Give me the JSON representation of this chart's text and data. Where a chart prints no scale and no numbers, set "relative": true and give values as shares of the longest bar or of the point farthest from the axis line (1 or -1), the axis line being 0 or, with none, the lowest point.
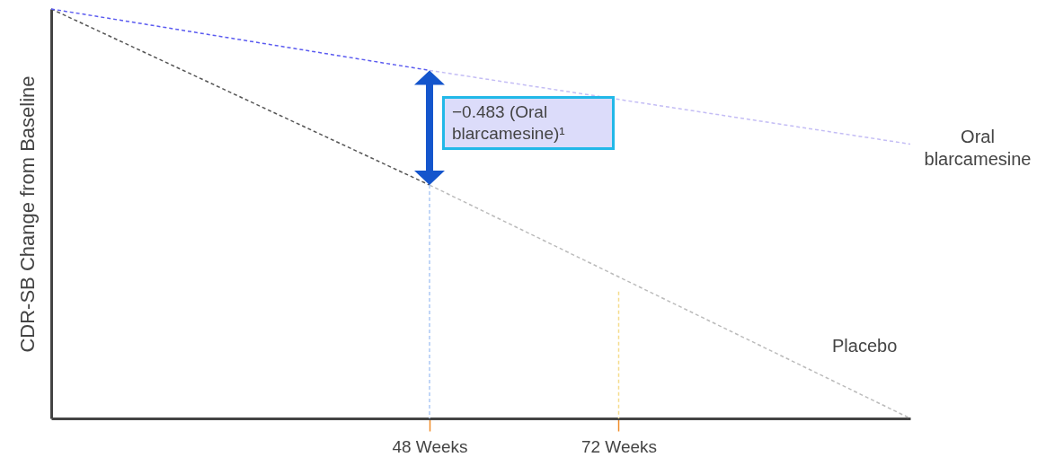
{
  "chart_data": {
    "type": "line",
    "relative": true,
    "ylabel": "CDR-SB Change from Baseline",
    "xlim": [
      0,
      109
    ],
    "xticks": [
      {
        "value": 48,
        "label": "48 Weeks"
      },
      {
        "value": 72,
        "label": "72 Weeks"
      }
    ],
    "tick_labels": "x",
    "line_style": "dashed",
    "series": [
      {
        "color": "#555555",
        "x": [
          0,
          48
        ],
        "values": [
          1,
          0.57
        ]
      },
      {
        "color": "#5b5bf0",
        "x": [
          0,
          48
        ],
        "values": [
          1,
          0.85
        ]
      },
      {
        "name": "Placebo",
        "color": "#bbbbbb",
        "x": [
          48,
          109
        ],
        "values": [
          0.57,
          0
        ]
      },
      {
        "name": "Oral blarcamesine",
        "color": "#c4bdf5",
        "x": [
          48,
          109
        ],
        "values": [
          0.85,
          0.67
        ]
      },
      {
        "color": "#adc9f5",
        "x": [
          48,
          48
        ],
        "values": [
          0.57,
          0
        ]
      },
      {
        "color": "#f5dc8c",
        "x": [
          72,
          72
        ],
        "values": [
          0.31,
          0
        ]
      }
    ],
    "annotations": [
      "−0.483 (Oral blarcamesine)¹"
    ]
  }
}
